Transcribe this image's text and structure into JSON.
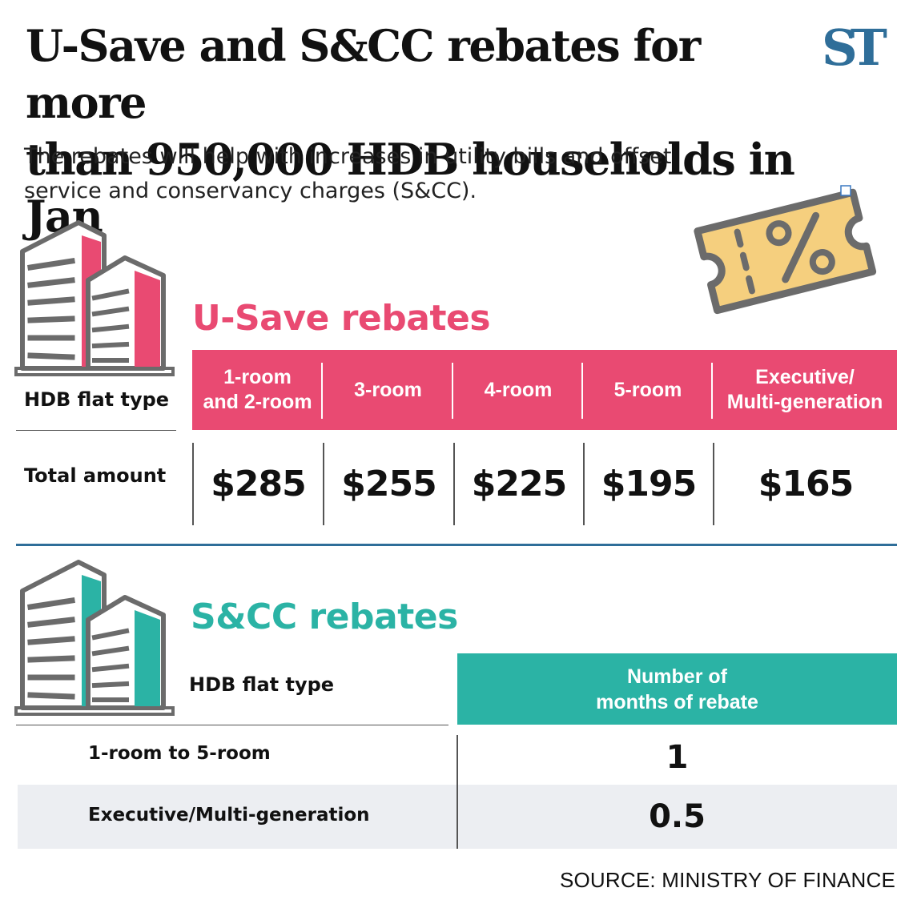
{
  "header": {
    "title_line1": "U-Save and S&CC rebates for more",
    "title_line2": "than 950,000 HDB households in Jan",
    "subtitle_line1": "The rebates will help with increases in utility bills and offset",
    "subtitle_line2": "service and conservancy charges (S&CC).",
    "logo_text": "ST"
  },
  "colors": {
    "pink": "#e94a72",
    "teal": "#2bb3a5",
    "logo_blue": "#2f6e99",
    "coupon_fill": "#f5cf7e"
  },
  "icons": {
    "building_pink": "building-icon",
    "building_teal": "building-icon",
    "coupon": "discount-coupon-icon"
  },
  "usave": {
    "title": "U-Save rebates",
    "row_header_label": "HDB flat type",
    "row_amount_label": "Total amount",
    "columns": [
      "1-room\nand 2-room",
      "3-room",
      "4-room",
      "5-room",
      "Executive/\nMulti-generation"
    ],
    "amounts": [
      "$285",
      "$255",
      "$225",
      "$195",
      "$165"
    ]
  },
  "scc": {
    "title": "S&CC rebates",
    "flat_type_label": "HDB flat type",
    "months_header": "Number of\nmonths of rebate",
    "rows": [
      {
        "type": "1-room to 5-room",
        "months": "1"
      },
      {
        "type": "Executive/Multi-generation",
        "months": "0.5"
      }
    ]
  },
  "footer": {
    "source": "SOURCE: MINISTRY OF FINANCE"
  }
}
